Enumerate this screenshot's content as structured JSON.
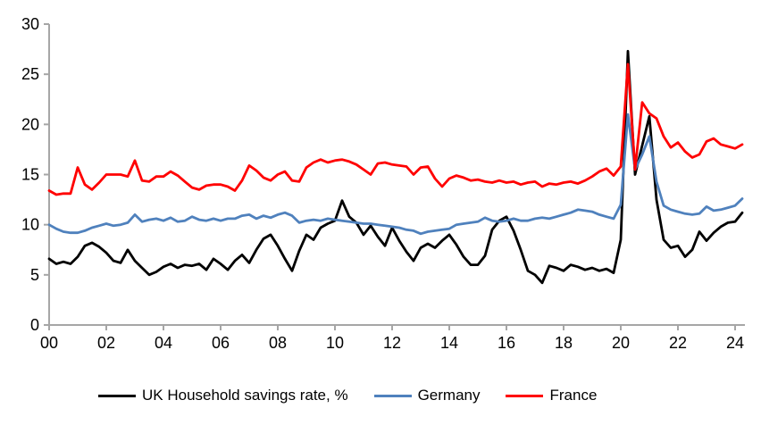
{
  "chart_data": {
    "type": "line",
    "title": "",
    "x_unit": "quarterly",
    "x_start_year": 2000,
    "x_end_year": 2024.25,
    "x_tick_labels": [
      "00",
      "02",
      "04",
      "06",
      "08",
      "10",
      "12",
      "14",
      "16",
      "18",
      "20",
      "22",
      "24"
    ],
    "y_ticks": [
      0,
      5,
      10,
      15,
      20,
      25,
      30
    ],
    "ylim": [
      0,
      30
    ],
    "grid": false,
    "legend_position": "bottom",
    "axis_color": "#A6A6A6",
    "series": [
      {
        "name": "UK Household savings rate, %",
        "color": "#000000",
        "values": [
          6.6,
          6.1,
          6.3,
          6.1,
          6.8,
          7.9,
          8.2,
          7.8,
          7.2,
          6.4,
          6.2,
          7.5,
          6.4,
          5.7,
          5.0,
          5.3,
          5.8,
          6.1,
          5.7,
          6.0,
          5.9,
          6.1,
          5.5,
          6.6,
          6.1,
          5.5,
          6.4,
          7.0,
          6.2,
          7.5,
          8.6,
          9.0,
          7.9,
          6.6,
          5.4,
          7.4,
          9.0,
          8.5,
          9.7,
          10.1,
          10.4,
          12.4,
          10.8,
          10.2,
          9.0,
          9.9,
          8.8,
          7.9,
          9.7,
          8.4,
          7.3,
          6.4,
          7.7,
          8.1,
          7.7,
          8.4,
          9.0,
          8.0,
          6.8,
          6.0,
          6.0,
          6.9,
          9.5,
          10.4,
          10.8,
          9.4,
          7.5,
          5.4,
          5.0,
          4.2,
          5.9,
          5.7,
          5.4,
          6.0,
          5.8,
          5.5,
          5.7,
          5.4,
          5.6,
          5.2,
          8.5,
          27.3,
          15.0,
          17.9,
          20.8,
          12.5,
          8.5,
          7.7,
          7.9,
          6.8,
          7.5,
          9.3,
          8.4,
          9.2,
          9.8,
          10.2,
          10.3,
          11.2
        ]
      },
      {
        "name": "Germany",
        "color": "#4F81BD",
        "values": [
          10.0,
          9.6,
          9.3,
          9.2,
          9.2,
          9.4,
          9.7,
          9.9,
          10.1,
          9.9,
          10.0,
          10.2,
          11.0,
          10.3,
          10.5,
          10.6,
          10.4,
          10.7,
          10.3,
          10.4,
          10.8,
          10.5,
          10.4,
          10.6,
          10.4,
          10.6,
          10.6,
          10.9,
          11.0,
          10.6,
          10.9,
          10.7,
          11.0,
          11.2,
          10.9,
          10.2,
          10.4,
          10.5,
          10.4,
          10.6,
          10.5,
          10.4,
          10.3,
          10.2,
          10.1,
          10.1,
          10.0,
          9.9,
          9.8,
          9.7,
          9.5,
          9.4,
          9.1,
          9.3,
          9.4,
          9.5,
          9.6,
          10.0,
          10.1,
          10.2,
          10.3,
          10.7,
          10.4,
          10.3,
          10.4,
          10.6,
          10.4,
          10.4,
          10.6,
          10.7,
          10.6,
          10.8,
          11.0,
          11.2,
          11.5,
          11.4,
          11.3,
          11.0,
          10.8,
          10.6,
          12.0,
          21.0,
          15.5,
          17.0,
          18.8,
          14.3,
          11.9,
          11.5,
          11.3,
          11.1,
          11.0,
          11.1,
          11.8,
          11.4,
          11.5,
          11.7,
          11.9,
          12.6
        ]
      },
      {
        "name": "France",
        "color": "#FF0000",
        "values": [
          13.4,
          13.0,
          13.1,
          13.1,
          15.7,
          14.0,
          13.5,
          14.2,
          15.0,
          15.0,
          15.0,
          14.8,
          16.4,
          14.4,
          14.3,
          14.8,
          14.8,
          15.3,
          14.9,
          14.3,
          13.7,
          13.5,
          13.9,
          14.0,
          14.0,
          13.8,
          13.4,
          14.4,
          15.9,
          15.4,
          14.7,
          14.4,
          15.0,
          15.3,
          14.4,
          14.3,
          15.7,
          16.2,
          16.5,
          16.2,
          16.4,
          16.5,
          16.3,
          16.0,
          15.5,
          15.0,
          16.1,
          16.2,
          16.0,
          15.9,
          15.8,
          15.0,
          15.7,
          15.8,
          14.6,
          13.8,
          14.6,
          14.9,
          14.7,
          14.4,
          14.5,
          14.3,
          14.2,
          14.4,
          14.2,
          14.3,
          14.0,
          14.2,
          14.3,
          13.8,
          14.1,
          14.0,
          14.2,
          14.3,
          14.1,
          14.4,
          14.8,
          15.3,
          15.6,
          14.9,
          15.8,
          26.0,
          15.5,
          22.2,
          21.1,
          20.6,
          18.8,
          17.7,
          18.2,
          17.3,
          16.7,
          17.0,
          18.3,
          18.6,
          18.0,
          17.8,
          17.6,
          18.0
        ]
      }
    ]
  }
}
